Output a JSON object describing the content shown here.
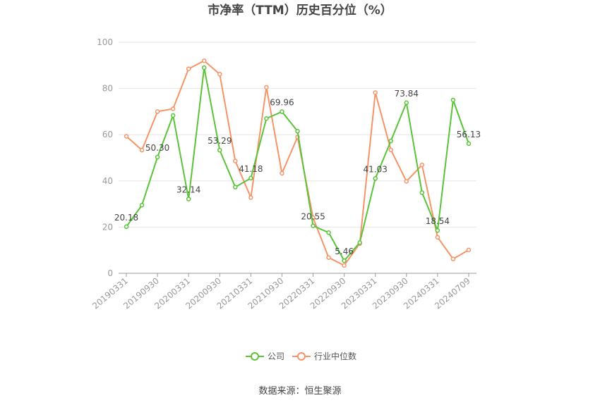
{
  "chart_data": {
    "type": "line",
    "title": "市净率（TTM）历史百分位（%）",
    "xlabel": "",
    "ylabel": "",
    "ylim": [
      0,
      100
    ],
    "yticks": [
      0,
      20,
      40,
      60,
      80,
      100
    ],
    "x_tick_labels": [
      "20190331",
      "20190930",
      "20200331",
      "20200930",
      "20210331",
      "20210930",
      "20220331",
      "20220930",
      "20230331",
      "20230930",
      "20240331",
      "20240709"
    ],
    "x_tick_positions": [
      0,
      2,
      4,
      6,
      8,
      10,
      12,
      14,
      16,
      18,
      20,
      22
    ],
    "grid": true,
    "legend_position": "bottom",
    "series": [
      {
        "name": "公司",
        "color": "#5bc33a",
        "values": [
          20.18,
          29.5,
          50.3,
          68.3,
          32.14,
          89.0,
          53.29,
          37.3,
          41.18,
          67.0,
          69.96,
          61.5,
          20.55,
          17.6,
          5.46,
          13.3,
          41.03,
          57.3,
          73.84,
          34.9,
          18.54,
          75.0,
          56.13
        ],
        "labels": {
          "0": "20.18",
          "2": "50.30",
          "4": "32.14",
          "6": "53.29",
          "8": "41.18",
          "10": "69.96",
          "12": "20.55",
          "14": "5.46",
          "16": "41.03",
          "18": "73.84",
          "20": "18.54",
          "22": "56.13"
        }
      },
      {
        "name": "行业中位数",
        "color": "#f59467",
        "values": [
          59.3,
          53.3,
          70.0,
          71.2,
          88.5,
          92.0,
          86.2,
          48.6,
          32.8,
          80.5,
          43.3,
          59.0,
          24.0,
          6.8,
          3.4,
          12.9,
          78.2,
          53.4,
          39.8,
          46.9,
          15.6,
          6.2,
          10.1
        ]
      }
    ]
  },
  "source": "数据来源：恒生聚源"
}
